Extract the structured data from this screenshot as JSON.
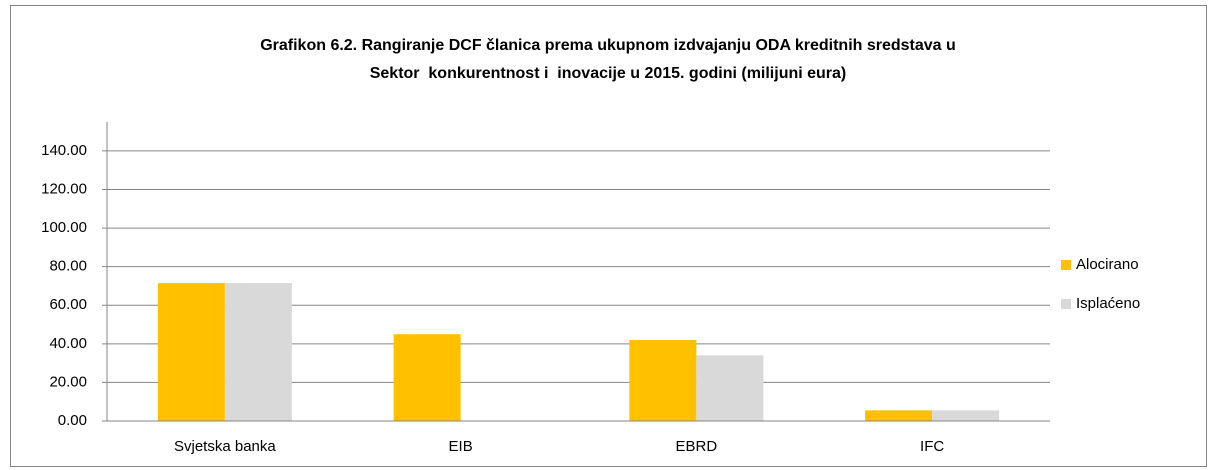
{
  "chart_data": {
    "type": "bar",
    "title": [
      "Grafikon 6.2. Rangiranje DCF članica prema ukupnom izdvajanju ODA kreditnih sredstava u",
      "Sektor  konkurentnost i  inovacije u 2015. godini (milijuni eura)"
    ],
    "categories": [
      "Svjetska banka",
      "EIB",
      "EBRD",
      "IFC"
    ],
    "series": [
      {
        "name": "Alocirano",
        "color": "#FFC000",
        "values": [
          71.5,
          45,
          42,
          5.5
        ]
      },
      {
        "name": "Isplaćeno",
        "color": "#D9D9D9",
        "values": [
          71.5,
          0,
          34,
          5.5
        ]
      }
    ],
    "ylim": [
      0,
      155
    ],
    "yticks": [
      {
        "value": 0,
        "label": "0.00"
      },
      {
        "value": 20,
        "label": "20.00"
      },
      {
        "value": 40,
        "label": "40.00"
      },
      {
        "value": 60,
        "label": "60.00"
      },
      {
        "value": 80,
        "label": "80.00"
      },
      {
        "value": 100,
        "label": "100.00"
      },
      {
        "value": 120,
        "label": "120.00"
      },
      {
        "value": 140,
        "label": "140.00"
      }
    ],
    "grid": true,
    "legend": "right"
  }
}
